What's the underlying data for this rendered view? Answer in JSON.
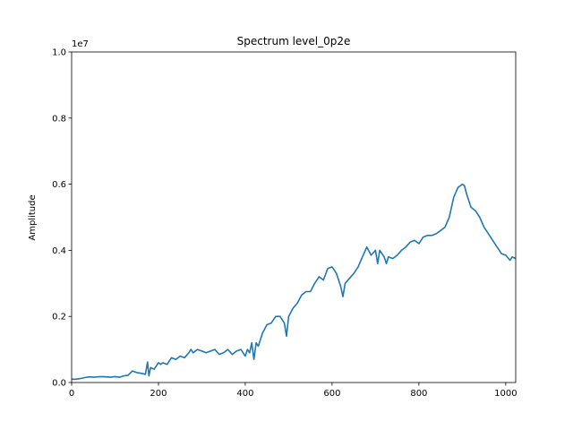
{
  "chart_data": {
    "type": "line",
    "title": "Spectrum level_0p2e",
    "xlabel": "",
    "ylabel": "Amplitude",
    "y_scale_factor_label": "1e7",
    "xlim": [
      0,
      1023
    ],
    "ylim": [
      0,
      1.0
    ],
    "xticks": [
      0,
      200,
      400,
      600,
      800,
      1000
    ],
    "xtick_labels": [
      "0",
      "200",
      "400",
      "600",
      "800",
      "1000"
    ],
    "yticks": [
      0.0,
      0.2,
      0.4,
      0.6,
      0.8,
      1.0
    ],
    "ytick_labels": [
      "0.0",
      "0.2",
      "0.4",
      "0.6",
      "0.8",
      "1.0"
    ],
    "grid": false,
    "line_color": "#1f77b4",
    "series": [
      {
        "x": [
          0,
          10,
          20,
          30,
          40,
          50,
          60,
          70,
          80,
          90,
          100,
          110,
          120,
          130,
          140,
          150,
          160,
          170,
          175,
          178,
          182,
          190,
          200,
          205,
          210,
          220,
          230,
          240,
          250,
          260,
          270,
          275,
          280,
          290,
          300,
          310,
          320,
          330,
          340,
          350,
          360,
          370,
          380,
          390,
          400,
          405,
          410,
          415,
          420,
          425,
          430,
          440,
          450,
          460,
          470,
          480,
          490,
          495,
          500,
          510,
          520,
          530,
          540,
          550,
          560,
          570,
          580,
          590,
          600,
          610,
          620,
          625,
          630,
          640,
          650,
          660,
          670,
          680,
          690,
          700,
          705,
          710,
          720,
          725,
          730,
          740,
          750,
          760,
          770,
          780,
          790,
          800,
          810,
          820,
          830,
          840,
          850,
          860,
          870,
          880,
          890,
          900,
          905,
          910,
          920,
          930,
          940,
          950,
          960,
          970,
          980,
          990,
          1000,
          1010,
          1015,
          1023
        ],
        "y": [
          0.01,
          0.01,
          0.012,
          0.015,
          0.017,
          0.016,
          0.017,
          0.018,
          0.017,
          0.016,
          0.018,
          0.016,
          0.02,
          0.022,
          0.035,
          0.03,
          0.028,
          0.025,
          0.062,
          0.02,
          0.045,
          0.04,
          0.06,
          0.055,
          0.06,
          0.055,
          0.075,
          0.07,
          0.08,
          0.075,
          0.09,
          0.1,
          0.09,
          0.1,
          0.095,
          0.09,
          0.095,
          0.1,
          0.085,
          0.09,
          0.1,
          0.085,
          0.095,
          0.1,
          0.08,
          0.1,
          0.09,
          0.12,
          0.07,
          0.12,
          0.11,
          0.15,
          0.175,
          0.18,
          0.2,
          0.2,
          0.18,
          0.14,
          0.2,
          0.225,
          0.24,
          0.265,
          0.275,
          0.275,
          0.3,
          0.32,
          0.31,
          0.345,
          0.35,
          0.33,
          0.29,
          0.26,
          0.3,
          0.315,
          0.33,
          0.35,
          0.38,
          0.41,
          0.385,
          0.4,
          0.36,
          0.4,
          0.38,
          0.36,
          0.38,
          0.375,
          0.385,
          0.4,
          0.41,
          0.425,
          0.43,
          0.42,
          0.44,
          0.445,
          0.445,
          0.45,
          0.46,
          0.47,
          0.5,
          0.56,
          0.59,
          0.6,
          0.595,
          0.57,
          0.53,
          0.52,
          0.5,
          0.47,
          0.45,
          0.43,
          0.41,
          0.39,
          0.385,
          0.37,
          0.38,
          0.375
        ]
      }
    ]
  }
}
